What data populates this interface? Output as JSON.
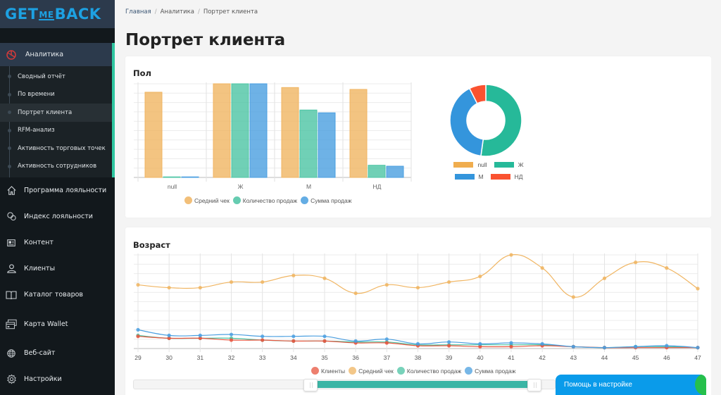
{
  "brand": {
    "logo_left": "GET",
    "logo_mid": "ME",
    "logo_right": "BACK",
    "color": "#1da1e2"
  },
  "sidebar": {
    "active": {
      "label": "Аналитика",
      "icon": "pie-chart-icon"
    },
    "subitems": [
      {
        "label": "Сводный отчёт"
      },
      {
        "label": "По времени"
      },
      {
        "label": "Портрет клиента",
        "selected": true
      },
      {
        "label": "RFM-анализ"
      },
      {
        "label": "Активность торговых точек"
      },
      {
        "label": "Активность сотрудников"
      }
    ],
    "items": [
      {
        "label": "Программа лояльности",
        "icon": "home-icon"
      },
      {
        "label": "Индекс лояльности",
        "icon": "chat-bubbles-icon"
      },
      {
        "label": "Контент",
        "icon": "newspaper-icon"
      },
      {
        "label": "Клиенты",
        "icon": "user-icon"
      },
      {
        "label": "Каталог товаров",
        "icon": "book-icon"
      },
      {
        "label": "Карта Wallet",
        "icon": "wallet-card-icon"
      },
      {
        "label": "Веб-сайт",
        "icon": "globe-icon"
      },
      {
        "label": "Настройки",
        "icon": "gear-icon"
      }
    ]
  },
  "breadcrumb": {
    "home": "Главная",
    "section": "Аналитика",
    "current": "Портрет клиента",
    "separator": "/"
  },
  "page": {
    "title": "Портрет клиента"
  },
  "gender_card": {
    "title": "Пол"
  },
  "age_card": {
    "title": "Возраст"
  },
  "help": {
    "label": "Помощь в настройке"
  },
  "colors": {
    "avg_check": "#f0b562",
    "sales_count": "#4cc4a4",
    "sales_sum": "#4a9fe0",
    "clients": "#e8553e",
    "donut_null": "#f0ad4e",
    "donut_zh": "#26b999",
    "donut_m": "#3495dc",
    "donut_nd": "#fa5230",
    "accent": "#2fc7a1"
  },
  "chart_data": [
    {
      "type": "bar",
      "title": "Пол",
      "categories": [
        "null",
        "Ж",
        "М",
        "НД"
      ],
      "series": [
        {
          "name": "Средний чек",
          "values": [
            91,
            100,
            96,
            94
          ]
        },
        {
          "name": "Количество продаж",
          "values": [
            0,
            100,
            72,
            13
          ]
        },
        {
          "name": "Сумма продаж",
          "values": [
            0,
            100,
            69,
            12
          ]
        }
      ],
      "ylim": [
        0,
        100
      ],
      "grid": true,
      "legend_position": "bottom",
      "note": "values normalized per series to the max (Ж); y-axis has no tick labels"
    },
    {
      "type": "pie",
      "variant": "donut",
      "title": "Пол",
      "categories": [
        "null",
        "Ж",
        "М",
        "НД"
      ],
      "values": [
        0,
        52.2,
        40.3,
        7.5
      ],
      "legend_position": "bottom"
    },
    {
      "type": "line",
      "title": "Возраст",
      "x": [
        29,
        30,
        31,
        32,
        33,
        34,
        35,
        36,
        37,
        38,
        39,
        40,
        41,
        42,
        43,
        44,
        45,
        46,
        47
      ],
      "series": [
        {
          "name": "Клиенты",
          "values": [
            13,
            11,
            11,
            9,
            9,
            8,
            8,
            6,
            6,
            3,
            3,
            2,
            2,
            3,
            2,
            1,
            1,
            1,
            1
          ]
        },
        {
          "name": "Средний чек",
          "values": [
            68,
            65,
            65,
            71,
            71,
            78,
            75,
            59,
            68,
            65,
            71,
            77,
            100,
            86,
            55,
            75,
            92,
            86,
            64
          ]
        },
        {
          "name": "Количество продаж",
          "values": [
            14,
            11,
            11,
            11,
            9,
            8,
            8,
            7,
            7,
            4,
            4,
            4,
            4,
            4,
            2,
            1,
            2,
            2,
            1
          ]
        },
        {
          "name": "Сумма продаж",
          "values": [
            20,
            14,
            14,
            15,
            13,
            13,
            13,
            8,
            10,
            5,
            7,
            5,
            6,
            5,
            2,
            1,
            2,
            3,
            1
          ]
        }
      ],
      "ylim": [
        0,
        100
      ],
      "grid": true,
      "smooth": true,
      "legend_position": "bottom",
      "range_slider": {
        "min_label": "29",
        "max_label": "47"
      }
    }
  ]
}
